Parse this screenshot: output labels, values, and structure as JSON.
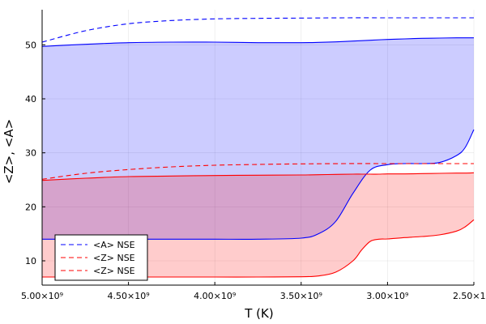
{
  "chart_data": {
    "type": "line",
    "title": "",
    "xlabel": "T (K)",
    "ylabel": "<Z>, <A>",
    "x_reversed": true,
    "xlim": [
      5000000000.0,
      2500000000.0
    ],
    "ylim": [
      5.5,
      56.5
    ],
    "grid": true,
    "legend_position": "bottom-left",
    "x_ticks": [
      {
        "value": 5000000000.0,
        "label": "5.00×10⁹"
      },
      {
        "value": 4500000000.0,
        "label": "4.50×10⁹"
      },
      {
        "value": 4000000000.0,
        "label": "4.00×10⁹"
      },
      {
        "value": 3500000000.0,
        "label": "3.50×10⁹"
      },
      {
        "value": 3000000000.0,
        "label": "3.00×10⁹"
      },
      {
        "value": 2500000000.0,
        "label": "2.50×10⁹"
      }
    ],
    "y_ticks": [
      {
        "value": 10,
        "label": "10"
      },
      {
        "value": 20,
        "label": "20"
      },
      {
        "value": 30,
        "label": "30"
      },
      {
        "value": 40,
        "label": "40"
      },
      {
        "value": 50,
        "label": "50"
      }
    ],
    "legend": [
      {
        "label": "<A> NSE",
        "color": "#0000ff",
        "dash": "dashed"
      },
      {
        "label": "<Z> NSE",
        "color": "#ff0000",
        "dash": "dashed"
      },
      {
        "label": "<Z> NSE",
        "color": "#ff0000",
        "dash": "dashed"
      }
    ],
    "bands": [
      {
        "color": "#0000ff",
        "opacity": 0.2,
        "x": [
          5000000000.0,
          4750000000.0,
          4500000000.0,
          4250000000.0,
          4000000000.0,
          3750000000.0,
          3500000000.0,
          3400000000.0,
          3300000000.0,
          3200000000.0,
          3100000000.0,
          3000000000.0,
          2900000000.0,
          2800000000.0,
          2700000000.0,
          2600000000.0,
          2550000000.0,
          2500000000.0
        ],
        "upper": [
          49.7,
          50.1,
          50.4,
          50.5,
          50.5,
          50.4,
          50.4,
          50.45,
          50.55,
          50.7,
          50.85,
          51.0,
          51.1,
          51.2,
          51.25,
          51.3,
          51.3,
          51.3
        ],
        "lower": [
          14.0,
          14.0,
          14.0,
          14.0,
          14.0,
          14.0,
          14.2,
          15.0,
          17.3,
          22.5,
          26.8,
          27.8,
          28.0,
          28.0,
          28.2,
          29.5,
          31.0,
          34.3
        ]
      },
      {
        "color": "#ff0000",
        "opacity": 0.2,
        "x": [
          5000000000.0,
          4750000000.0,
          4500000000.0,
          4250000000.0,
          4000000000.0,
          3750000000.0,
          3500000000.0,
          3400000000.0,
          3300000000.0,
          3200000000.0,
          3150000000.0,
          3100000000.0,
          3050000000.0,
          3000000000.0,
          2900000000.0,
          2800000000.0,
          2700000000.0,
          2600000000.0,
          2550000000.0,
          2500000000.0
        ],
        "upper": [
          24.9,
          25.3,
          25.6,
          25.7,
          25.8,
          25.85,
          25.9,
          25.95,
          26.0,
          26.05,
          26.05,
          26.05,
          26.05,
          26.1,
          26.1,
          26.15,
          26.2,
          26.25,
          26.25,
          26.3
        ],
        "lower": [
          7.0,
          7.0,
          7.0,
          7.0,
          7.0,
          7.0,
          7.05,
          7.2,
          7.9,
          10.0,
          12.0,
          13.6,
          14.0,
          14.05,
          14.3,
          14.5,
          14.8,
          15.5,
          16.3,
          17.6
        ]
      }
    ],
    "series": [
      {
        "name": "<A> NSE",
        "color": "#0000ff",
        "dash": "dashed",
        "x": [
          5000000000.0,
          4750000000.0,
          4500000000.0,
          4250000000.0,
          4000000000.0,
          3750000000.0,
          3500000000.0,
          3250000000.0,
          3000000000.0,
          2750000000.0,
          2500000000.0
        ],
        "y": [
          50.5,
          52.6,
          53.9,
          54.5,
          54.8,
          54.9,
          54.95,
          55.0,
          55.0,
          55.0,
          55.0
        ]
      },
      {
        "name": "<Z> NSE",
        "color": "#ff0000",
        "dash": "dashed",
        "x": [
          5000000000.0,
          4750000000.0,
          4500000000.0,
          4250000000.0,
          4000000000.0,
          3750000000.0,
          3500000000.0,
          3250000000.0,
          3000000000.0,
          2750000000.0,
          2500000000.0
        ],
        "y": [
          25.1,
          26.2,
          26.9,
          27.4,
          27.7,
          27.85,
          27.95,
          28.0,
          28.0,
          28.0,
          28.0
        ]
      }
    ]
  }
}
